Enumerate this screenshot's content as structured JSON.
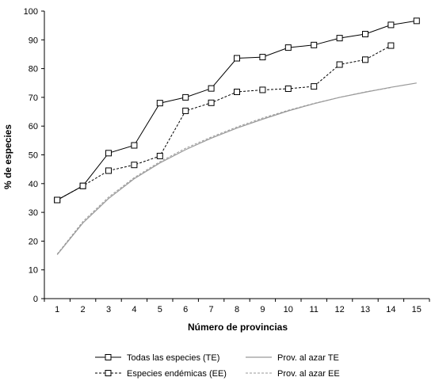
{
  "chart_data": {
    "type": "line",
    "x": [
      1,
      2,
      3,
      4,
      5,
      6,
      7,
      8,
      9,
      10,
      11,
      12,
      13,
      14,
      15
    ],
    "xlabel": "Número de provincias",
    "ylabel": "% de especies",
    "ylim": [
      0,
      100
    ],
    "xlim": [
      1,
      15
    ],
    "yticks": [
      0,
      10,
      20,
      30,
      40,
      50,
      60,
      70,
      80,
      90,
      100
    ],
    "grid": false,
    "legend_position": "bottom",
    "series": [
      {
        "name": "Todas las especies (TE)",
        "style": "solid-square",
        "color": "#000000",
        "values": [
          34.3,
          39.2,
          50.6,
          53.3,
          68.0,
          70.0,
          73.1,
          83.6,
          84.0,
          87.3,
          88.2,
          90.6,
          92.0,
          95.2,
          96.6
        ]
      },
      {
        "name": "Especies endémicas (EE)",
        "style": "dotted-square",
        "color": "#000000",
        "values": [
          34.3,
          39.2,
          44.5,
          46.5,
          49.6,
          65.3,
          68.1,
          71.9,
          72.6,
          73.0,
          73.8,
          81.4,
          83.1,
          88.0,
          null
        ]
      },
      {
        "name": "Prov. al azar TE",
        "style": "solid",
        "color": "#999999",
        "values": [
          15.3,
          26.3,
          34.8,
          41.7,
          47.2,
          51.8,
          55.8,
          59.3,
          62.4,
          65.3,
          67.8,
          70.0,
          71.8,
          73.5,
          75.0
        ]
      },
      {
        "name": "Prov. al azar EE",
        "style": "dashed",
        "color": "#999999",
        "values": [
          15.5,
          26.8,
          35.3,
          42.1,
          47.6,
          52.3,
          56.2,
          59.7,
          62.8,
          65.5,
          67.9,
          70.0,
          71.9,
          73.4,
          null
        ]
      }
    ]
  }
}
